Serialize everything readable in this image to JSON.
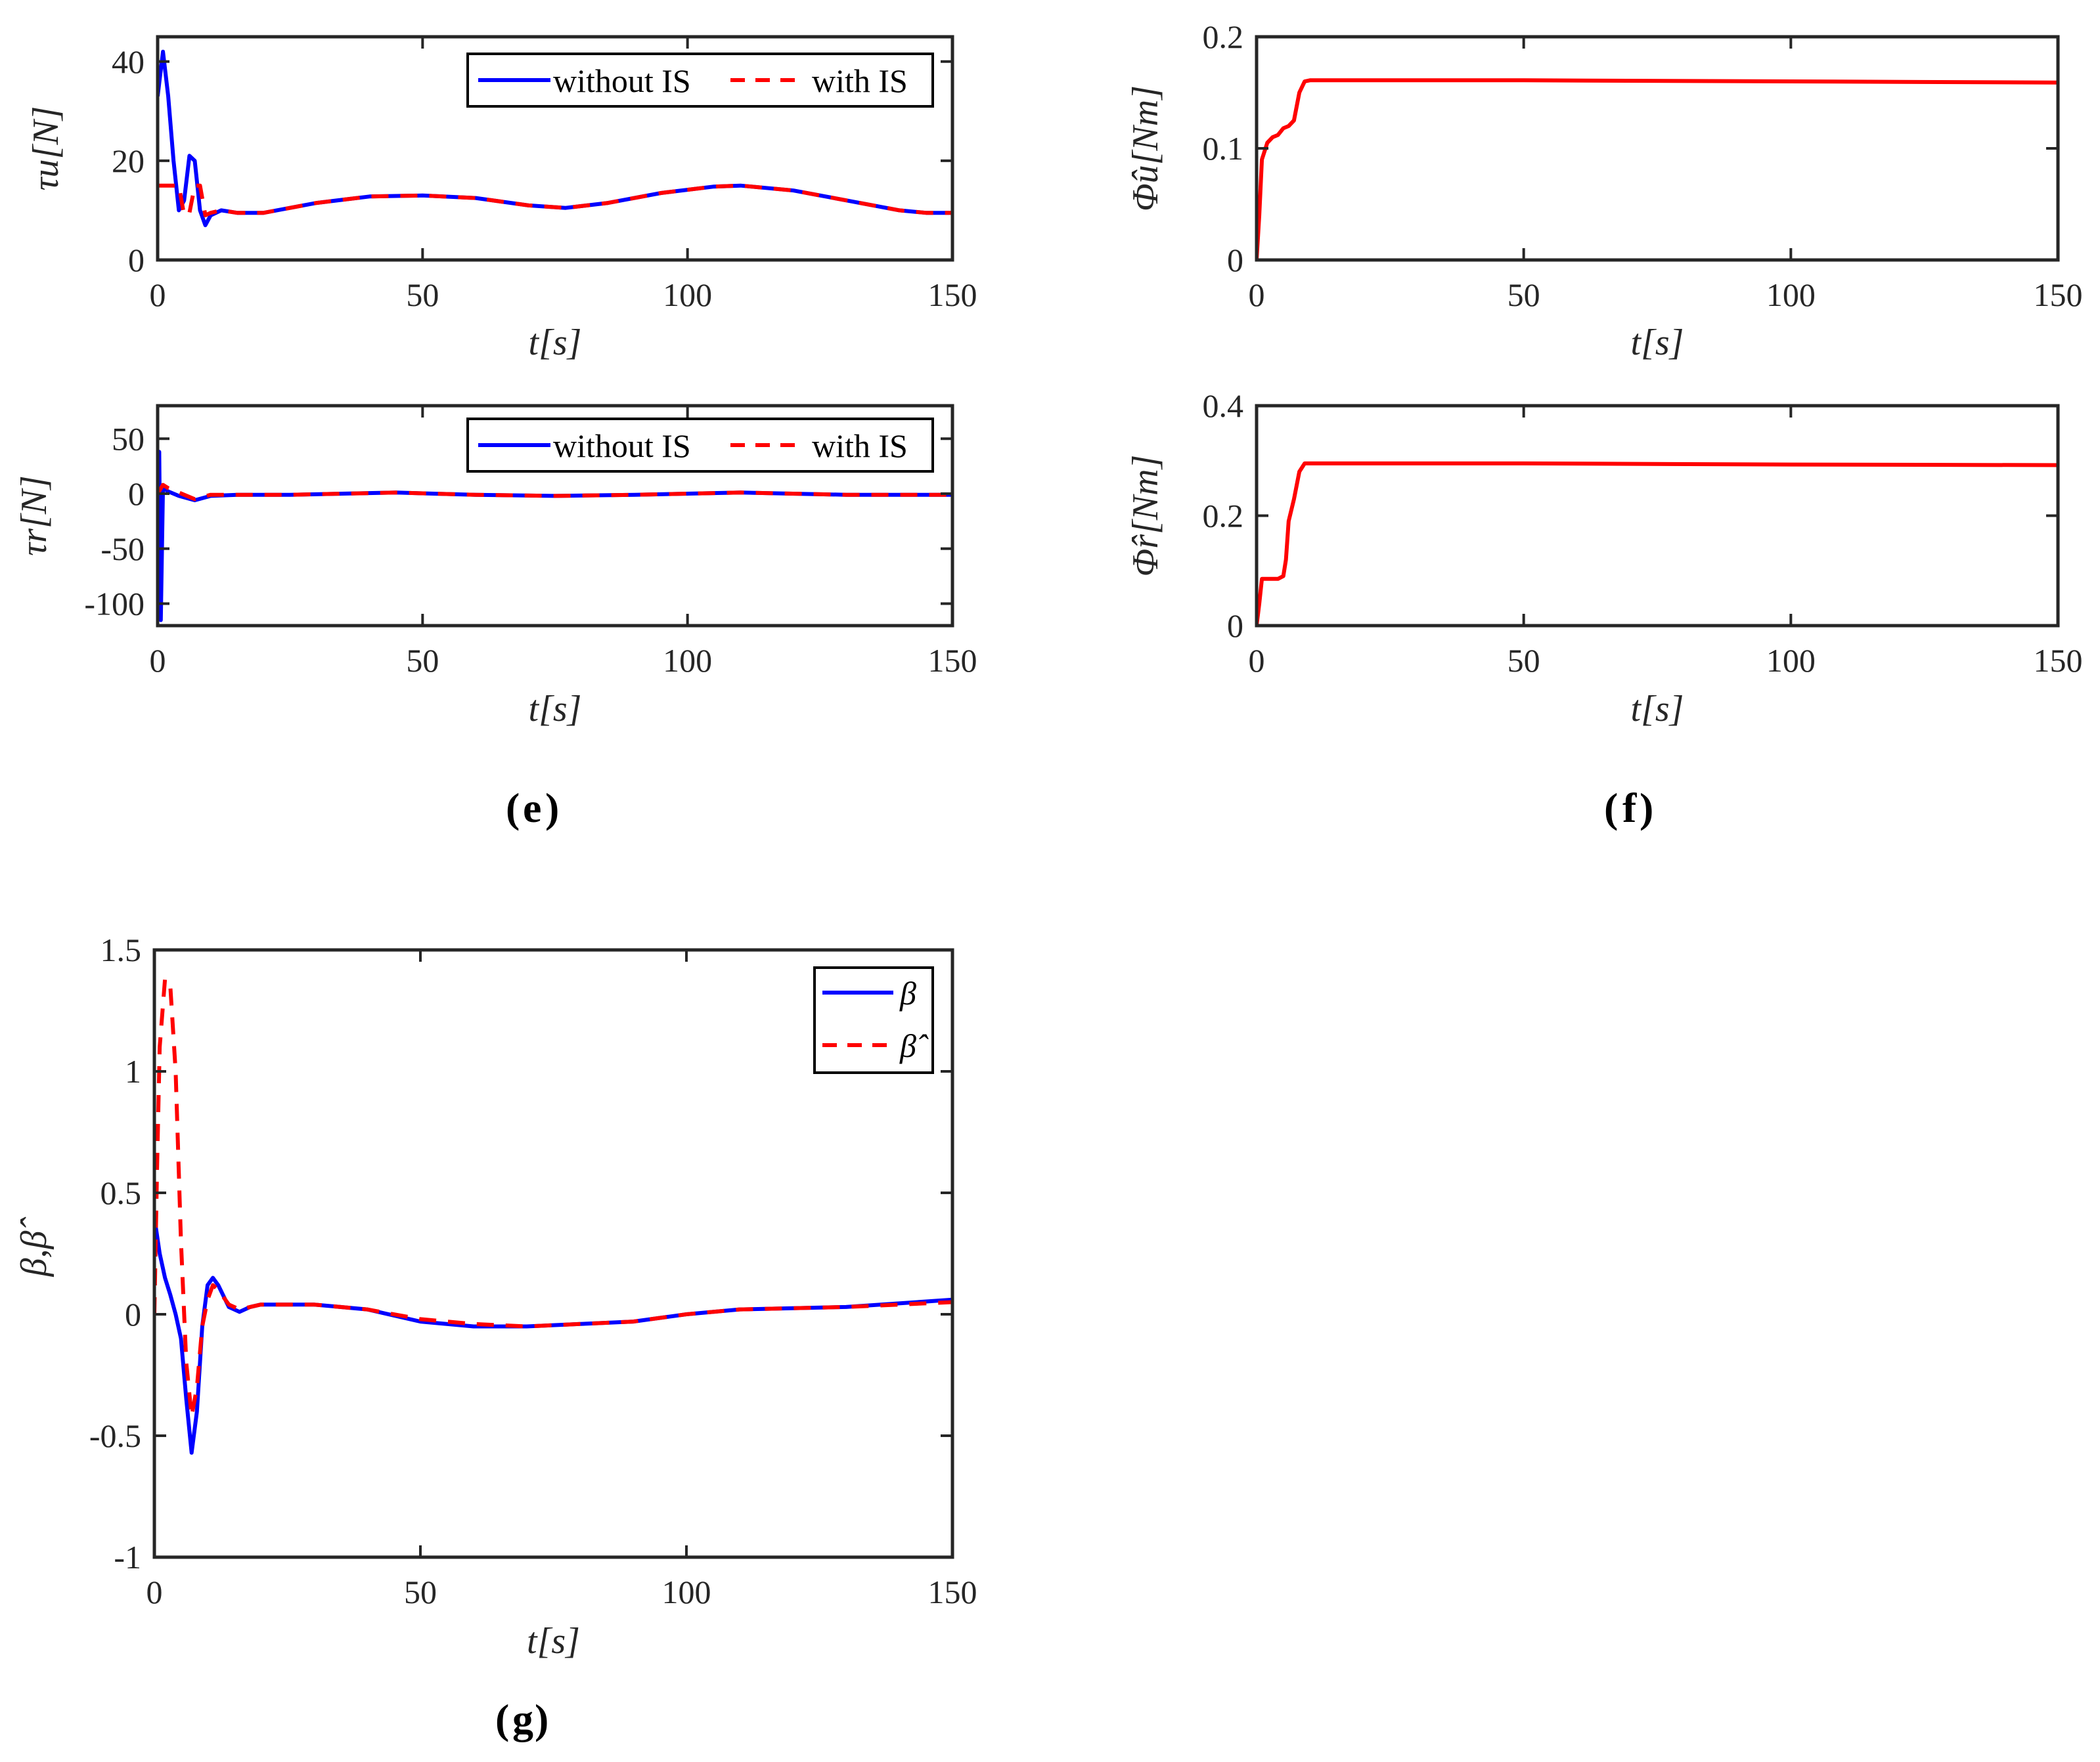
{
  "panel_labels": {
    "e": "e",
    "f": "f",
    "g": "g"
  },
  "colors": {
    "blue": "#0000ff",
    "red": "#ff0000",
    "axis": "#262626"
  },
  "chart_data": [
    {
      "id": "tau_u",
      "type": "line",
      "panel": "e",
      "xlabel": "t[s]",
      "ylabel": "τu[N]",
      "xlim": [
        0,
        150
      ],
      "ylim": [
        0,
        45
      ],
      "xticks": [
        0,
        50,
        100,
        150
      ],
      "yticks": [
        0,
        20,
        40
      ],
      "legend_position": "top-right",
      "series": [
        {
          "name": "without IS",
          "style": "solid",
          "color": "#0000ff",
          "x": [
            0,
            1,
            2,
            3,
            4,
            5,
            6,
            7,
            8,
            9,
            10,
            12,
            15,
            20,
            30,
            40,
            50,
            60,
            70,
            77,
            85,
            95,
            105,
            110,
            120,
            130,
            140,
            145,
            150
          ],
          "y": [
            33,
            42,
            33,
            20,
            10,
            12,
            21,
            20,
            10,
            7,
            9,
            10,
            9.5,
            9.5,
            11.5,
            12.8,
            13,
            12.5,
            11,
            10.5,
            11.5,
            13.5,
            14.8,
            15,
            14,
            12,
            10,
            9.5,
            9.5
          ]
        },
        {
          "name": "with IS",
          "style": "dashed",
          "color": "#ff0000",
          "x": [
            0,
            4,
            5,
            6,
            7,
            8,
            9,
            10,
            12,
            15,
            20,
            30,
            40,
            50,
            60,
            70,
            77,
            85,
            95,
            105,
            110,
            120,
            130,
            140,
            145,
            150
          ],
          "y": [
            15,
            15,
            9,
            9.5,
            15,
            15,
            9,
            9.5,
            10,
            9.5,
            9.5,
            11.5,
            12.8,
            13,
            12.5,
            11,
            10.5,
            11.5,
            13.5,
            14.8,
            15,
            14,
            12,
            10,
            9.5,
            9.5
          ]
        }
      ]
    },
    {
      "id": "tau_r",
      "type": "line",
      "panel": "e",
      "xlabel": "t[s]",
      "ylabel": "τr[N]",
      "xlim": [
        0,
        150
      ],
      "ylim": [
        -120,
        80
      ],
      "xticks": [
        0,
        50,
        100,
        150
      ],
      "yticks": [
        -100,
        -50,
        0,
        50
      ],
      "legend_position": "top-right",
      "series": [
        {
          "name": "without IS",
          "style": "solid",
          "color": "#0000ff",
          "x": [
            0,
            0.3,
            0.6,
            1,
            2,
            4,
            7,
            10,
            15,
            25,
            45,
            60,
            75,
            90,
            110,
            130,
            150
          ],
          "y": [
            0,
            38,
            -115,
            5,
            2,
            -2,
            -6,
            -2,
            -1,
            -1,
            1,
            -1,
            -2,
            -1,
            1,
            -1,
            -1
          ]
        },
        {
          "name": "with IS",
          "style": "dashed",
          "color": "#ff0000",
          "x": [
            0,
            1,
            2,
            4,
            7,
            10,
            15,
            25,
            45,
            60,
            75,
            90,
            110,
            130,
            150
          ],
          "y": [
            0,
            8,
            5,
            1,
            -5,
            -1,
            -1,
            -1,
            1,
            -1,
            -2,
            -1,
            1,
            -1,
            -1
          ]
        }
      ]
    },
    {
      "id": "phi_u",
      "type": "line",
      "panel": "f",
      "xlabel": "t[s]",
      "ylabel": "Φ̂u[Nm]",
      "xlim": [
        0,
        150
      ],
      "ylim": [
        0,
        0.2
      ],
      "xticks": [
        0,
        50,
        100,
        150
      ],
      "yticks": [
        0,
        0.1,
        0.2
      ],
      "series": [
        {
          "name": "Φ̂u",
          "style": "solid",
          "color": "#ff0000",
          "x": [
            0,
            0.5,
            1,
            2,
            3,
            4,
            5,
            6,
            7,
            8,
            9,
            10,
            50,
            100,
            150
          ],
          "y": [
            0,
            0.04,
            0.09,
            0.105,
            0.11,
            0.112,
            0.118,
            0.12,
            0.125,
            0.15,
            0.16,
            0.161,
            0.161,
            0.16,
            0.159
          ]
        }
      ]
    },
    {
      "id": "phi_r",
      "type": "line",
      "panel": "f",
      "xlabel": "t[s]",
      "ylabel": "Φ̂r[Nm]",
      "xlim": [
        0,
        150
      ],
      "ylim": [
        0,
        0.4
      ],
      "xticks": [
        0,
        50,
        100,
        150
      ],
      "yticks": [
        0,
        0.2,
        0.4
      ],
      "series": [
        {
          "name": "Φ̂r",
          "style": "solid",
          "color": "#ff0000",
          "x": [
            0,
            0.5,
            1,
            4,
            5,
            5.5,
            6,
            7,
            8,
            9,
            10,
            50,
            100,
            150
          ],
          "y": [
            0,
            0.04,
            0.085,
            0.085,
            0.09,
            0.12,
            0.19,
            0.23,
            0.28,
            0.295,
            0.295,
            0.295,
            0.293,
            0.292
          ]
        }
      ]
    },
    {
      "id": "beta",
      "type": "line",
      "panel": "g",
      "xlabel": "t[s]",
      "ylabel": "β,β̂",
      "xlim": [
        0,
        150
      ],
      "ylim": [
        -1,
        1.5
      ],
      "xticks": [
        0,
        50,
        100,
        150
      ],
      "yticks": [
        -1,
        -0.5,
        0,
        0.5,
        1,
        1.5
      ],
      "legend_position": "top-right",
      "series": [
        {
          "name": "β",
          "style": "solid",
          "color": "#0000ff",
          "x": [
            0,
            1,
            2,
            3,
            4,
            5,
            6,
            7,
            8,
            9,
            10,
            11,
            12,
            14,
            16,
            18,
            20,
            30,
            40,
            50,
            60,
            70,
            80,
            90,
            100,
            110,
            130,
            150
          ],
          "y": [
            0.4,
            0.25,
            0.15,
            0.08,
            0.0,
            -0.1,
            -0.35,
            -0.57,
            -0.4,
            -0.05,
            0.12,
            0.15,
            0.12,
            0.03,
            0.01,
            0.03,
            0.04,
            0.04,
            0.02,
            -0.03,
            -0.05,
            -0.05,
            -0.04,
            -0.03,
            0.0,
            0.02,
            0.03,
            0.06
          ]
        },
        {
          "name": "β̂",
          "style": "dashed",
          "color": "#ff0000",
          "x": [
            0,
            0.5,
            1,
            2,
            3,
            4,
            5,
            6,
            7,
            8,
            9,
            10,
            11,
            12,
            14,
            16,
            18,
            20,
            30,
            40,
            50,
            60,
            70,
            80,
            90,
            100,
            110,
            130,
            150
          ],
          "y": [
            0.0,
            0.6,
            1.1,
            1.38,
            1.35,
            1.0,
            0.3,
            -0.2,
            -0.42,
            -0.3,
            -0.05,
            0.06,
            0.12,
            0.1,
            0.04,
            0.02,
            0.03,
            0.04,
            0.04,
            0.02,
            -0.02,
            -0.04,
            -0.05,
            -0.04,
            -0.03,
            0.0,
            0.02,
            0.03,
            0.05
          ]
        }
      ]
    }
  ]
}
